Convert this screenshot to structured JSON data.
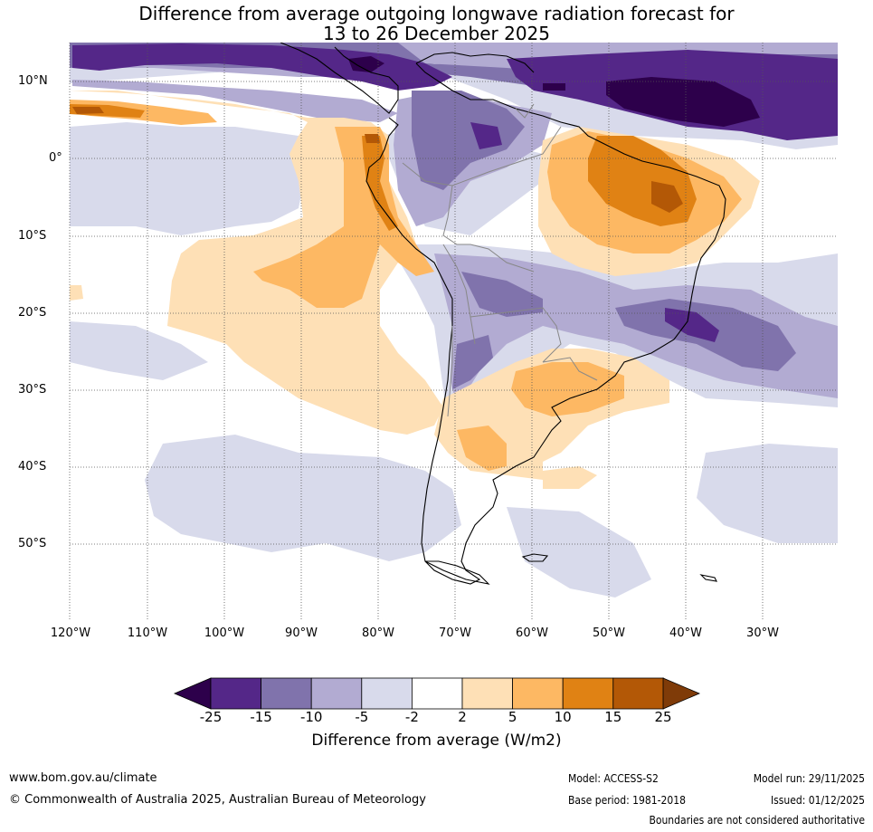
{
  "title": {
    "line1": "Difference from average outgoing longwave radiation forecast for",
    "line2": "13 to 26 December 2025"
  },
  "map": {
    "lat_labels": [
      "10°N",
      "0°",
      "10°S",
      "20°S",
      "30°S",
      "40°S",
      "50°S"
    ],
    "lon_labels": [
      "120°W",
      "110°W",
      "100°W",
      "90°W",
      "80°W",
      "70°W",
      "60°W",
      "50°W",
      "40°W",
      "30°W"
    ]
  },
  "colorbar": {
    "ticks": [
      "-25",
      "-15",
      "-10",
      "-5",
      "-2",
      "2",
      "5",
      "10",
      "15",
      "25"
    ],
    "colors": [
      "#2d004b",
      "#542788",
      "#8073ac",
      "#b2abd2",
      "#d8daeb",
      "#ffffff",
      "#fee0b6",
      "#fdb863",
      "#e08214",
      "#b35806",
      "#7f3b08"
    ],
    "label": "Difference from average (W/m2)"
  },
  "footer": {
    "website": "www.bom.gov.au/climate",
    "copyright": "© Commonwealth of Australia 2025, Australian Bureau of Meteorology",
    "model": "Model: ACCESS-S2",
    "base_period": "Base period: 1981-2018",
    "model_run": "Model run: 29/11/2025",
    "issued": "Issued: 01/12/2025",
    "disclaimer": "Boundaries are not considered authoritative"
  }
}
